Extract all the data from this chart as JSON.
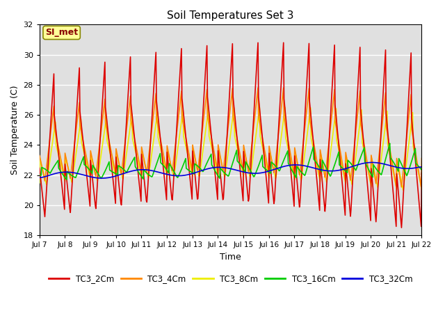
{
  "title": "Soil Temperatures Set 3",
  "xlabel": "Time",
  "ylabel": "Soil Temperature (C)",
  "ylim": [
    18,
    32
  ],
  "x_tick_labels": [
    "Jul 7",
    "Jul 8",
    "Jul 9",
    "Jul 10",
    "Jul 11",
    "Jul 12",
    "Jul 13",
    "Jul 14",
    "Jul 15",
    "Jul 16",
    "Jul 17",
    "Jul 18",
    "Jul 19",
    "Jul 20",
    "Jul 21",
    "Jul 22"
  ],
  "series": {
    "TC3_2Cm": {
      "color": "#DD0000",
      "lw": 1.2
    },
    "TC3_4Cm": {
      "color": "#FF8800",
      "lw": 1.2
    },
    "TC3_8Cm": {
      "color": "#EEEE00",
      "lw": 1.2
    },
    "TC3_16Cm": {
      "color": "#00CC00",
      "lw": 1.2
    },
    "TC3_32Cm": {
      "color": "#0000DD",
      "lw": 1.2
    }
  },
  "annotation_text": "SI_met",
  "annotation_bg": "#FFFF99",
  "annotation_border": "#888800",
  "plot_bg": "#E0E0E0",
  "fig_bg": "#FFFFFF",
  "grid_color": "#FFFFFF",
  "yticks": [
    18,
    20,
    22,
    24,
    26,
    28,
    30,
    32
  ]
}
